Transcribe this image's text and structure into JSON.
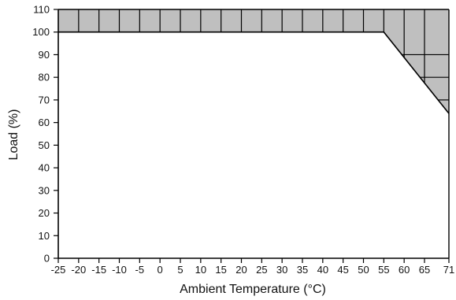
{
  "chart_data": {
    "type": "area",
    "xlabel": "Ambient Temperature (°C)",
    "ylabel": "Load (%)",
    "xlim": [
      -25,
      71
    ],
    "ylim": [
      0,
      110
    ],
    "x_ticks": [
      -25,
      -20,
      -15,
      -10,
      -5,
      0,
      5,
      10,
      15,
      20,
      25,
      30,
      35,
      40,
      45,
      50,
      55,
      60,
      65,
      71
    ],
    "y_ticks": [
      0,
      10,
      20,
      30,
      40,
      50,
      60,
      70,
      80,
      90,
      100,
      110
    ],
    "grid": "shaded region only",
    "series": [
      {
        "x": [
          -25,
          55,
          71
        ],
        "y": [
          100,
          100,
          64
        ]
      }
    ],
    "colors": {
      "shade": "#bfbfbf",
      "line": "#000000"
    }
  }
}
